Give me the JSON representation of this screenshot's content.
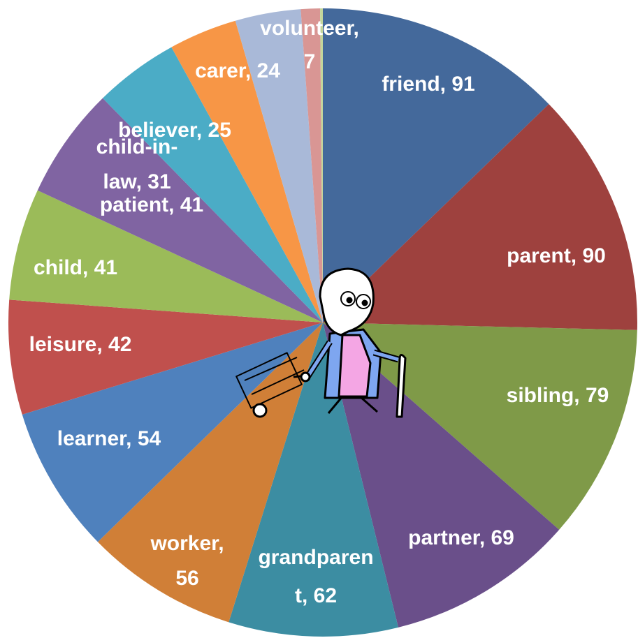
{
  "chart_data": {
    "type": "pie",
    "values": [
      91,
      90,
      79,
      69,
      62,
      56,
      54,
      42,
      41,
      41,
      31,
      25,
      24,
      7,
      1
    ],
    "value_labels": [
      [
        "friend, 91"
      ],
      [
        "parent, 90"
      ],
      [
        "sibling, 79"
      ],
      [
        "partner, 69"
      ],
      [
        "grandparen",
        "t, 62"
      ],
      [
        "worker,",
        "56"
      ],
      [
        "learner, 54"
      ],
      [
        "leisure, 42"
      ],
      [
        "child, 41"
      ],
      [
        "patient, 41"
      ],
      [
        "child-in-",
        "law, 31"
      ],
      [
        "believer, 25"
      ],
      [
        "carer, 24"
      ],
      [
        "volunteer,",
        "7"
      ],
      null
    ],
    "colors": [
      "#44699b",
      "#9e413e",
      "#7f9a48",
      "#6a4f8a",
      "#3c8da2",
      "#d07f37",
      "#4f81bd",
      "#c0504d",
      "#9bbb59",
      "#8064a2",
      "#4bacc6",
      "#f79646",
      "#a9b9d8",
      "#d99694",
      "#c3d69b"
    ]
  }
}
